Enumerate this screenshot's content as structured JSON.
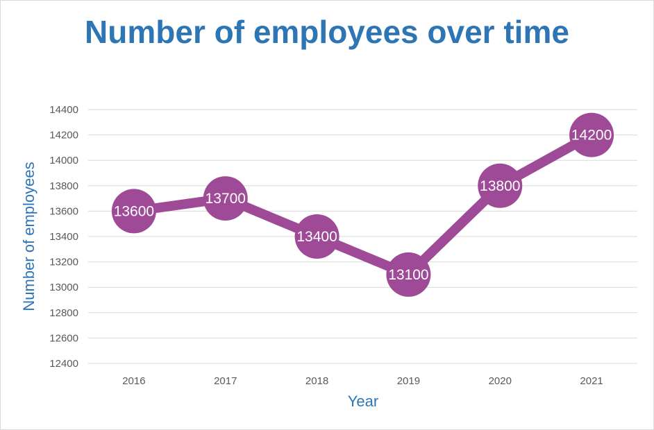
{
  "chart_data": {
    "type": "line",
    "title": "Number of employees over time",
    "xlabel": "Year",
    "ylabel": "Number of employees",
    "categories": [
      "2016",
      "2017",
      "2018",
      "2019",
      "2020",
      "2021"
    ],
    "series": [
      {
        "values": [
          13600,
          13700,
          13400,
          13100,
          13800,
          14200
        ]
      }
    ],
    "ylim": [
      12400,
      14400
    ],
    "yticks": [
      12400,
      12600,
      12800,
      13000,
      13200,
      13400,
      13600,
      13800,
      14000,
      14200,
      14400
    ],
    "grid": true,
    "legend": "none",
    "data_labels": true,
    "colors": {
      "series": "#9e4a97",
      "title": "#2e75b6",
      "grid": "#d9d9d9",
      "ticks": "#595959"
    }
  }
}
